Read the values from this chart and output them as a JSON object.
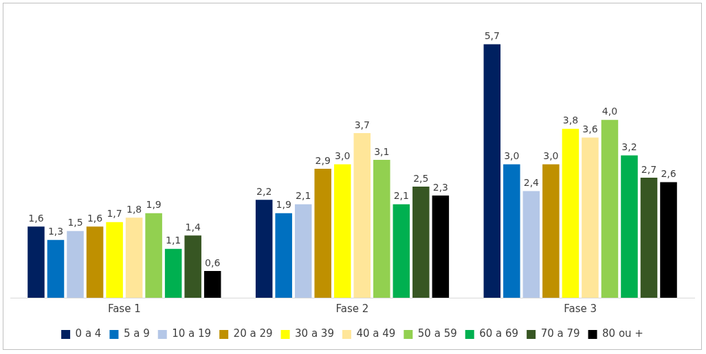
{
  "chart_data": {
    "type": "bar",
    "categories": [
      "Fase 1",
      "Fase 2",
      "Fase 3"
    ],
    "legend": "bottom",
    "grid": false,
    "series": [
      {
        "name": "0 a 4",
        "color": "#002060",
        "values": [
          1.6,
          2.2,
          5.7
        ],
        "value_labels": [
          "1,6",
          "2,2",
          "5,7"
        ]
      },
      {
        "name": "5 a 9",
        "color": "#0070c0",
        "values": [
          1.3,
          1.9,
          3.0
        ],
        "value_labels": [
          "1,3",
          "1,9",
          "3,0"
        ]
      },
      {
        "name": "10 a 19",
        "color": "#b4c7e7",
        "values": [
          1.5,
          2.1,
          2.4
        ],
        "value_labels": [
          "1,5",
          "2,1",
          "2,4"
        ]
      },
      {
        "name": "20 a 29",
        "color": "#bf9000",
        "values": [
          1.6,
          2.9,
          3.0
        ],
        "value_labels": [
          "1,6",
          "2,9",
          "3,0"
        ]
      },
      {
        "name": "30 a 39",
        "color": "#ffff00",
        "values": [
          1.7,
          3.0,
          3.8
        ],
        "value_labels": [
          "1,7",
          "3,0",
          "3,8"
        ]
      },
      {
        "name": "40 a 49",
        "color": "#ffe699",
        "values": [
          1.8,
          3.7,
          3.6
        ],
        "value_labels": [
          "1,8",
          "3,7",
          "3,6"
        ]
      },
      {
        "name": "50 a 59",
        "color": "#92d050",
        "values": [
          1.9,
          3.1,
          4.0
        ],
        "value_labels": [
          "1,9",
          "3,1",
          "4,0"
        ]
      },
      {
        "name": "60 a 69",
        "color": "#00b050",
        "values": [
          1.1,
          2.1,
          3.2
        ],
        "value_labels": [
          "1,1",
          "2,1",
          "3,2"
        ]
      },
      {
        "name": "70 a 79",
        "color": "#375623",
        "values": [
          1.4,
          2.5,
          2.7
        ],
        "value_labels": [
          "1,4",
          "2,5",
          "2,7"
        ]
      },
      {
        "name": "80 ou +",
        "color": "#000000",
        "values": [
          0.6,
          2.3,
          2.6
        ],
        "value_labels": [
          "0,6",
          "2,3",
          "2,6"
        ]
      }
    ]
  }
}
